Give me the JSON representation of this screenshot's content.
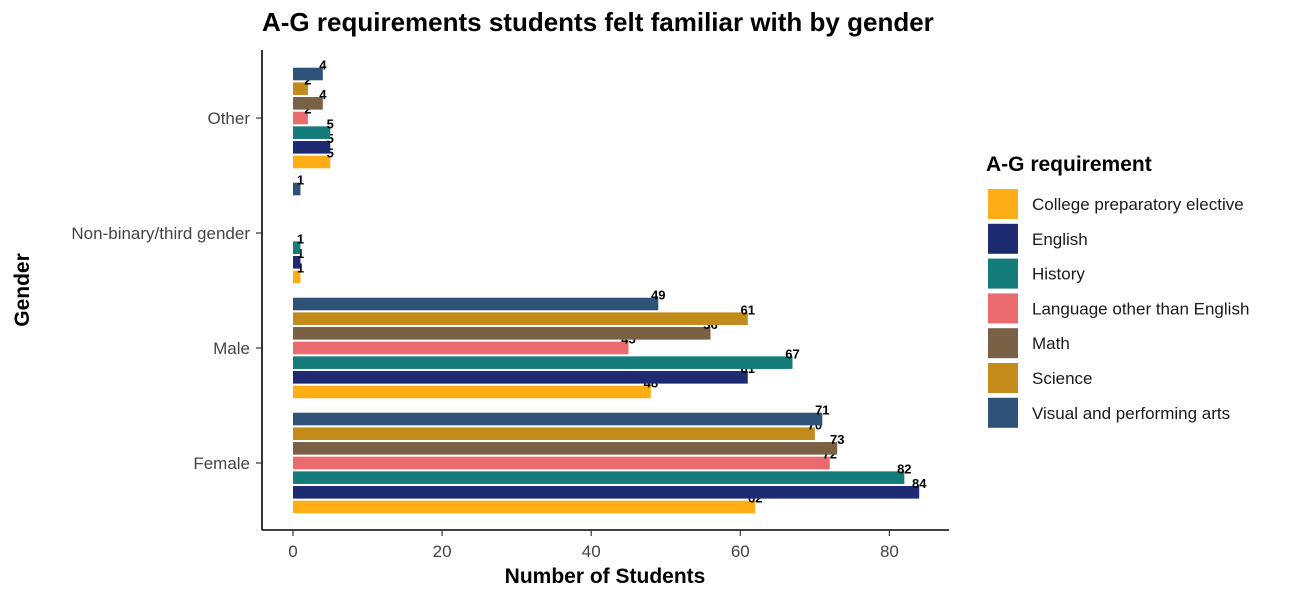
{
  "chart_data": {
    "type": "bar",
    "orientation": "horizontal",
    "title": "A-G requirements students felt familiar with by gender",
    "xlabel": "Number of Students",
    "ylabel": "Gender",
    "xlim": [
      0,
      86
    ],
    "x_ticks": [
      0,
      20,
      40,
      60,
      80
    ],
    "categories": [
      "Female",
      "Male",
      "Non-binary/third gender",
      "Other"
    ],
    "legend_title": "A-G requirement",
    "legend_position": "right",
    "grid": false,
    "series": [
      {
        "name": "College preparatory elective",
        "color": "#FDAD15",
        "values": [
          62,
          48,
          1,
          5
        ]
      },
      {
        "name": "English",
        "color": "#1E2B73",
        "values": [
          84,
          61,
          1,
          5
        ]
      },
      {
        "name": "History",
        "color": "#147C7A",
        "values": [
          82,
          67,
          1,
          5
        ]
      },
      {
        "name": "Language other than English",
        "color": "#EA6B6E",
        "values": [
          72,
          45,
          null,
          2
        ]
      },
      {
        "name": "Math",
        "color": "#7A6145",
        "values": [
          73,
          56,
          null,
          4
        ]
      },
      {
        "name": "Science",
        "color": "#C38B1A",
        "values": [
          70,
          61,
          null,
          2
        ]
      },
      {
        "name": "Visual and performing arts",
        "color": "#2E5278",
        "values": [
          71,
          49,
          1,
          4
        ]
      }
    ]
  }
}
